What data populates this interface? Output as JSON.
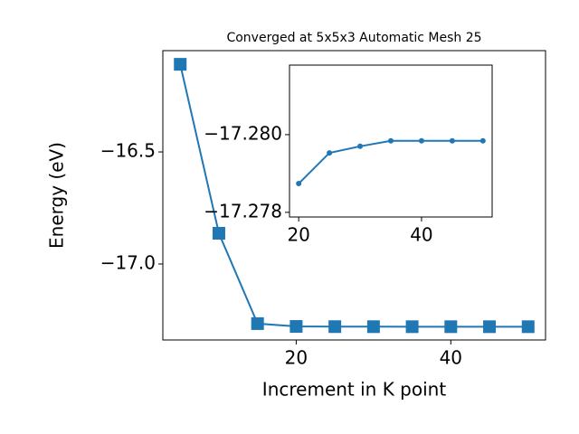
{
  "chart_data": [
    {
      "type": "line",
      "title": "Converged at 5x5x3 Automatic Mesh 25",
      "x_label": "Increment in K point",
      "y_label": "Energy (eV)",
      "x": [
        5,
        10,
        15,
        20,
        25,
        30,
        35,
        40,
        45,
        50
      ],
      "values": [
        -16.109,
        -16.863,
        -17.266,
        -17.2787,
        -17.2795,
        -17.2797,
        -17.2798,
        -17.2798,
        -17.2798,
        -17.2798
      ],
      "color": "#1f77b4",
      "marker": "square",
      "xlim": [
        2.75,
        52.25
      ],
      "xticks": [
        20,
        40
      ],
      "ylim": [
        -17.339,
        -16.048
      ],
      "yticks": [
        {
          "value": -16.5,
          "label": "−16.5"
        },
        {
          "value": -17.0,
          "label": "−17.0"
        }
      ]
    },
    {
      "type": "line",
      "x": [
        20,
        25,
        30,
        35,
        40,
        45,
        50
      ],
      "values": [
        -17.27874,
        -17.27953,
        -17.2797,
        -17.27984,
        -17.27984,
        -17.27984,
        -17.27984
      ],
      "color": "#1f77b4",
      "marker": "circle",
      "xlim": [
        18.5,
        51.5
      ],
      "xticks": [
        20,
        40
      ],
      "ylim": [
        -17.27788,
        -17.28179
      ],
      "yticks": [
        {
          "value": -17.28,
          "label": "−17.280"
        },
        {
          "value": -17.278,
          "label": "−17.278"
        }
      ]
    }
  ]
}
